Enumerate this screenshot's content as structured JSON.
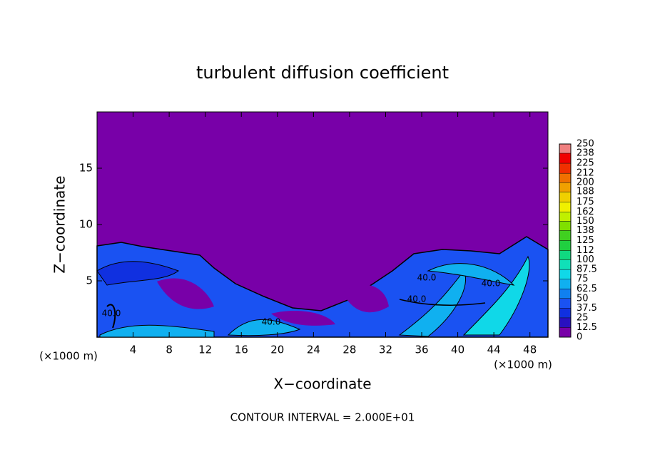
{
  "chart_data": {
    "type": "contour",
    "title": "turbulent diffusion coefficient",
    "x_label": "X−coordinate",
    "y_label": "Z−coordinate",
    "x_unit_left": "(×1000 m)",
    "x_unit_right": "(×1000 m)",
    "footer": "CONTOUR INTERVAL = 2.000E+01",
    "contour_labels": [
      "40.0",
      "40.0",
      "40.0",
      "40.0",
      "40.0"
    ],
    "xlim": [
      0,
      50
    ],
    "xticks": [
      4,
      8,
      12,
      16,
      20,
      24,
      28,
      32,
      36,
      40,
      44,
      48
    ],
    "ylim": [
      0,
      20
    ],
    "yticks": [
      5,
      10,
      15
    ],
    "colorbar": {
      "lim": [
        0,
        250
      ],
      "ticks": [
        0,
        12.5,
        25,
        37.5,
        50,
        62.5,
        75,
        87.5,
        100,
        112,
        125,
        138,
        150,
        162,
        175,
        188,
        200,
        212,
        225,
        238,
        250
      ],
      "colors": [
        "#7800a8",
        "#2a10c0",
        "#1030e0",
        "#1a52f2",
        "#1080f0",
        "#10b0f0",
        "#10d8e8",
        "#10e0b8",
        "#10d880",
        "#20d040",
        "#40d020",
        "#80e000",
        "#c0f000",
        "#f0f000",
        "#f0d000",
        "#f0a000",
        "#f07000",
        "#f03000",
        "#f00000",
        "#f08080"
      ]
    }
  }
}
